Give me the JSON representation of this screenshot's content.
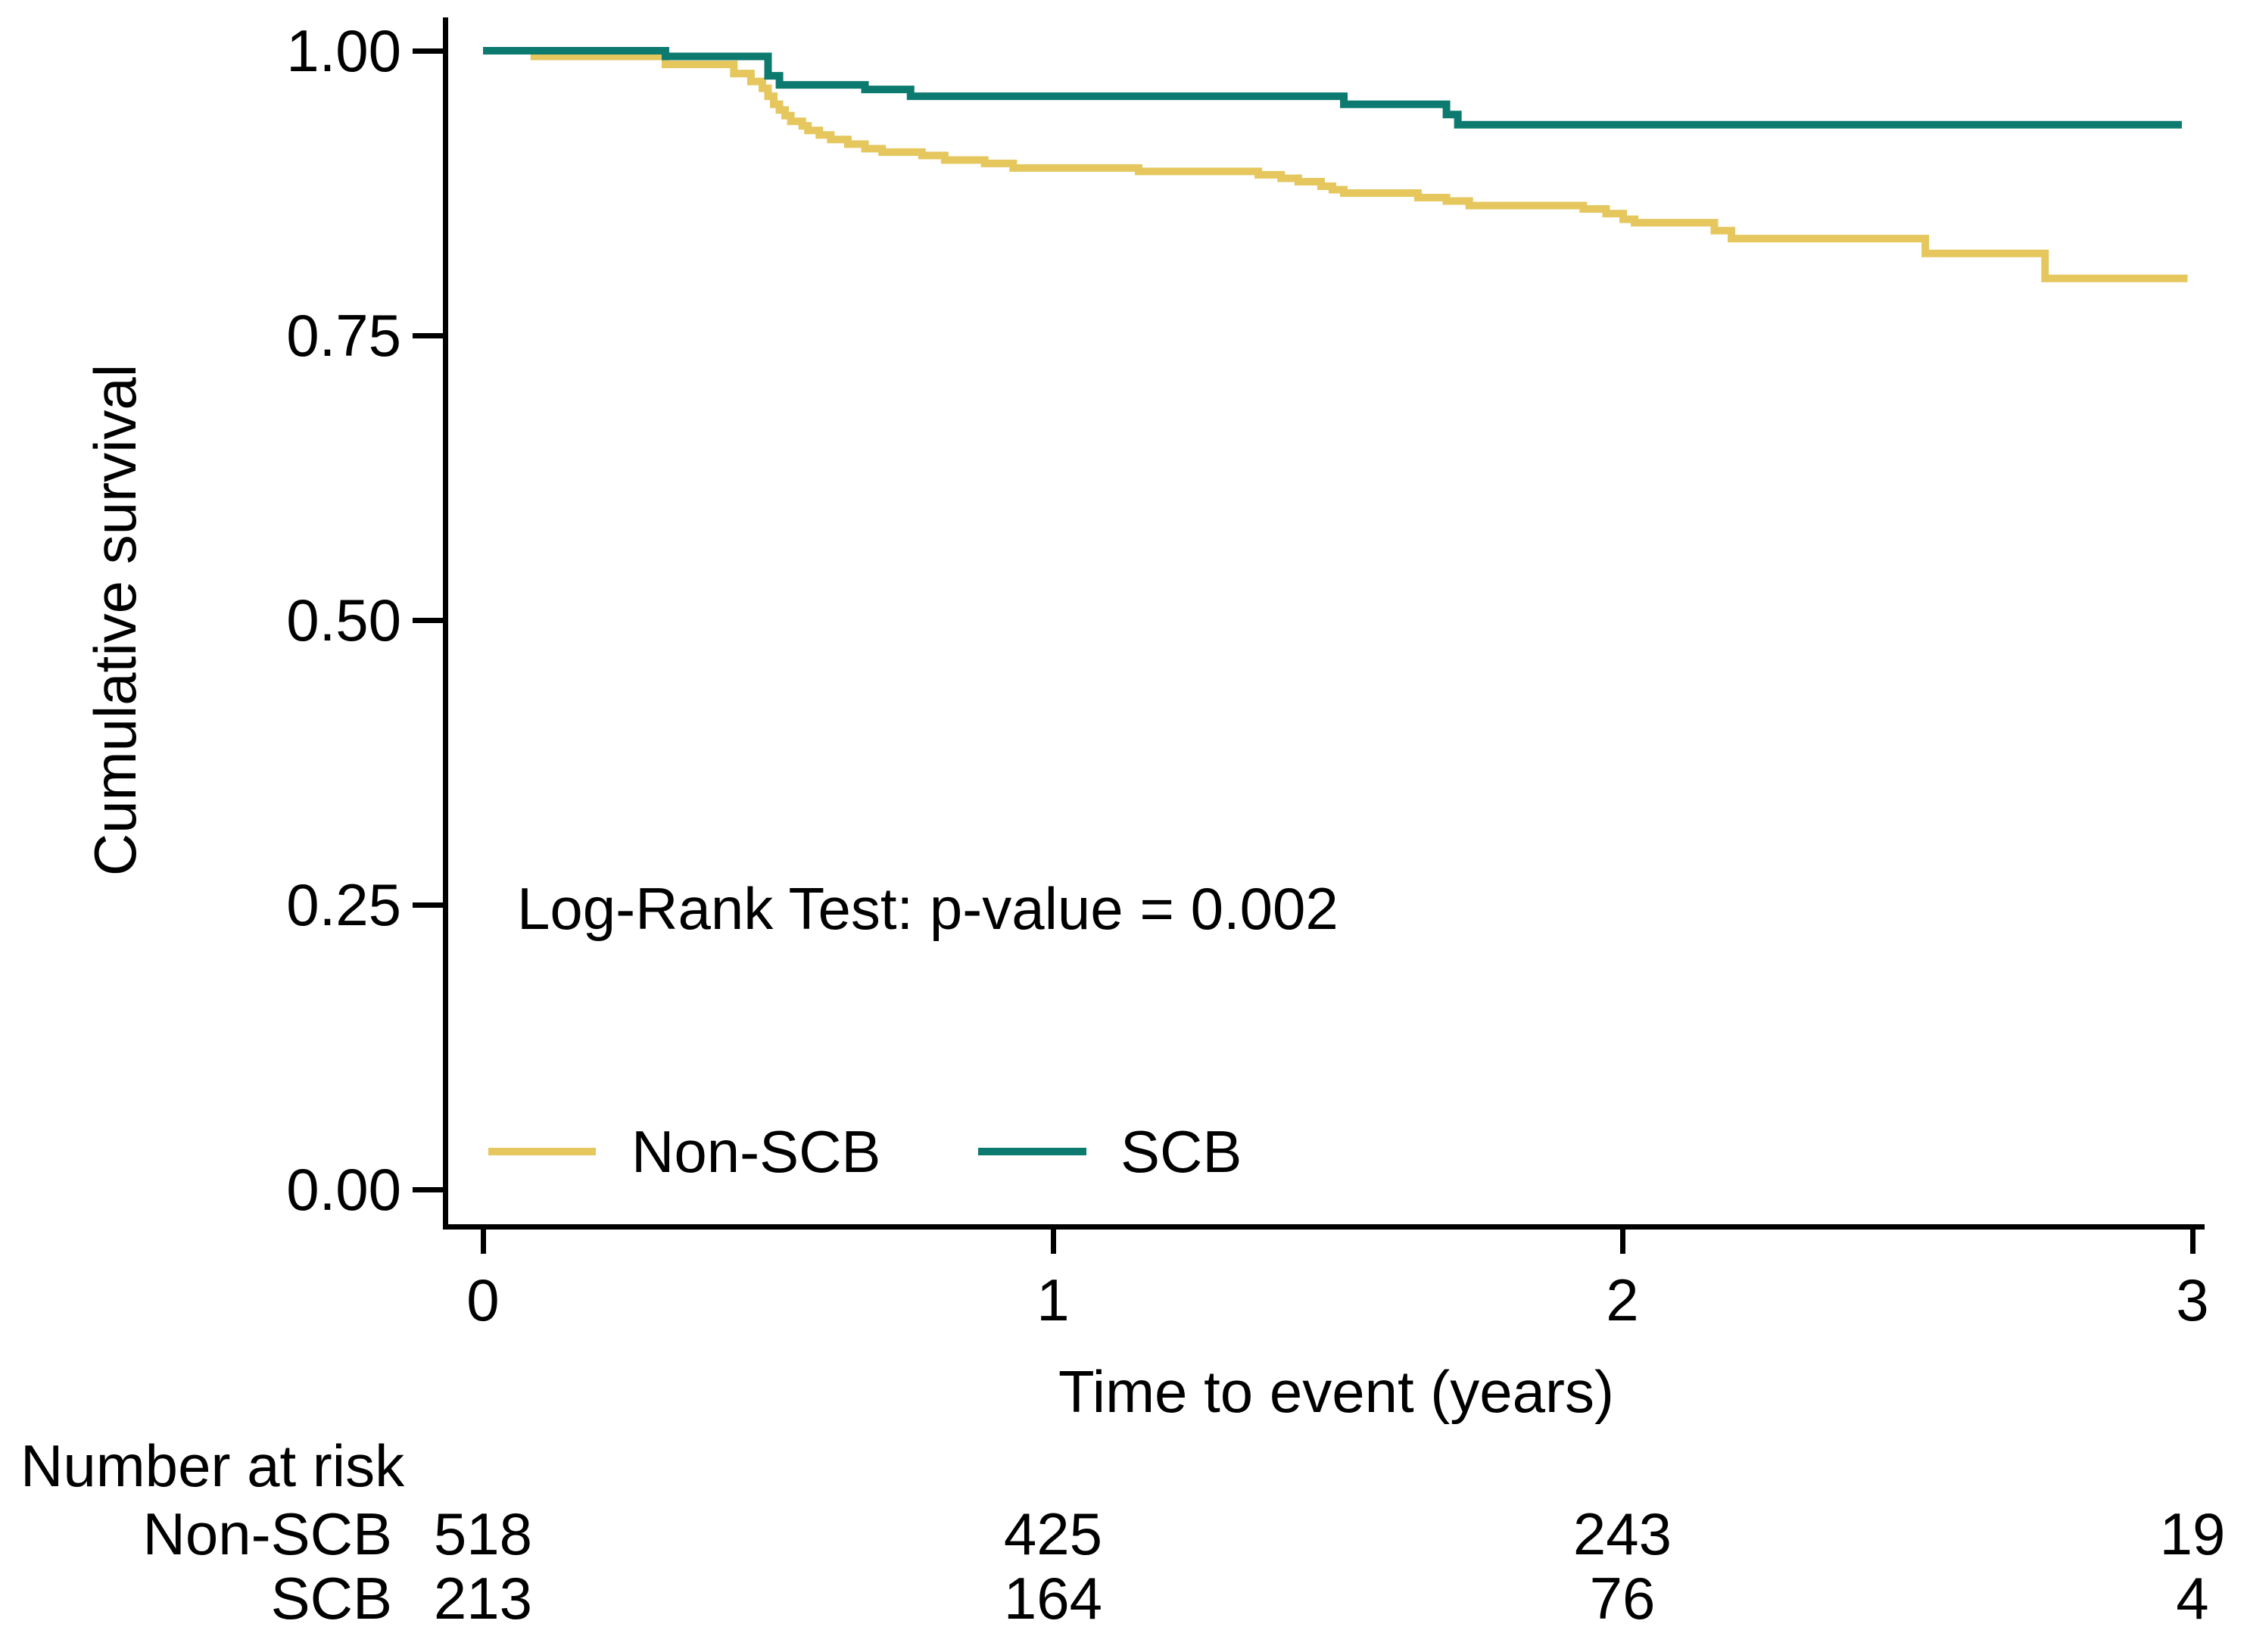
{
  "chart_data": {
    "type": "line",
    "subtype": "kaplan_meier_step",
    "title": "",
    "xlabel": "Time to event (years)",
    "ylabel": "Cumulative survival",
    "xlim": [
      0,
      3
    ],
    "ylim": [
      0.0,
      1.0
    ],
    "grid": false,
    "annotation": "Log-Rank Test: p-value = 0.002",
    "legend_position": "inside-bottom-left",
    "xticks": [
      {
        "label": "0",
        "value": 0
      },
      {
        "label": "1",
        "value": 1
      },
      {
        "label": "2",
        "value": 2
      },
      {
        "label": "3",
        "value": 3
      }
    ],
    "yticks": [
      {
        "label": "1.00",
        "value": 1.0
      },
      {
        "label": "0.75",
        "value": 0.75
      },
      {
        "label": "0.50",
        "value": 0.5
      },
      {
        "label": "0.25",
        "value": 0.25
      },
      {
        "label": "0.00",
        "value": 0.0
      }
    ],
    "series": [
      {
        "name": "Non-SCB",
        "color": "#e5c75e",
        "points": [
          [
            0,
            1.0
          ],
          [
            0.09,
            0.995
          ],
          [
            0.32,
            0.988
          ],
          [
            0.44,
            0.98
          ],
          [
            0.47,
            0.973
          ],
          [
            0.49,
            0.967
          ],
          [
            0.5,
            0.96
          ],
          [
            0.51,
            0.953
          ],
          [
            0.52,
            0.948
          ],
          [
            0.53,
            0.943
          ],
          [
            0.54,
            0.938
          ],
          [
            0.56,
            0.934
          ],
          [
            0.57,
            0.93
          ],
          [
            0.59,
            0.926
          ],
          [
            0.61,
            0.922
          ],
          [
            0.64,
            0.918
          ],
          [
            0.67,
            0.914
          ],
          [
            0.7,
            0.911
          ],
          [
            0.77,
            0.908
          ],
          [
            0.81,
            0.904
          ],
          [
            0.88,
            0.901
          ],
          [
            0.93,
            0.897
          ],
          [
            1.15,
            0.894
          ],
          [
            1.36,
            0.891
          ],
          [
            1.4,
            0.888
          ],
          [
            1.43,
            0.885
          ],
          [
            1.47,
            0.881
          ],
          [
            1.49,
            0.878
          ],
          [
            1.51,
            0.875
          ],
          [
            1.64,
            0.871
          ],
          [
            1.69,
            0.868
          ],
          [
            1.73,
            0.864
          ],
          [
            1.93,
            0.861
          ],
          [
            1.97,
            0.857
          ],
          [
            2.0,
            0.852
          ],
          [
            2.02,
            0.849
          ],
          [
            2.16,
            0.842
          ],
          [
            2.19,
            0.835
          ],
          [
            2.53,
            0.822
          ],
          [
            2.74,
            0.8
          ],
          [
            2.99,
            0.8
          ]
        ]
      },
      {
        "name": "SCB",
        "color": "#0d7a70",
        "points": [
          [
            0,
            1.0
          ],
          [
            0.32,
            0.995
          ],
          [
            0.5,
            0.978
          ],
          [
            0.52,
            0.97
          ],
          [
            0.67,
            0.966
          ],
          [
            0.75,
            0.96
          ],
          [
            1.51,
            0.953
          ],
          [
            1.69,
            0.944
          ],
          [
            1.71,
            0.935
          ],
          [
            2.98,
            0.935
          ]
        ]
      }
    ]
  },
  "risk_table": {
    "title": "Number at risk",
    "rows": [
      {
        "label": "Non-SCB",
        "values": [
          "518",
          "425",
          "243",
          "19"
        ]
      },
      {
        "label": "SCB",
        "values": [
          "213",
          "164",
          "76",
          "4"
        ]
      }
    ]
  }
}
